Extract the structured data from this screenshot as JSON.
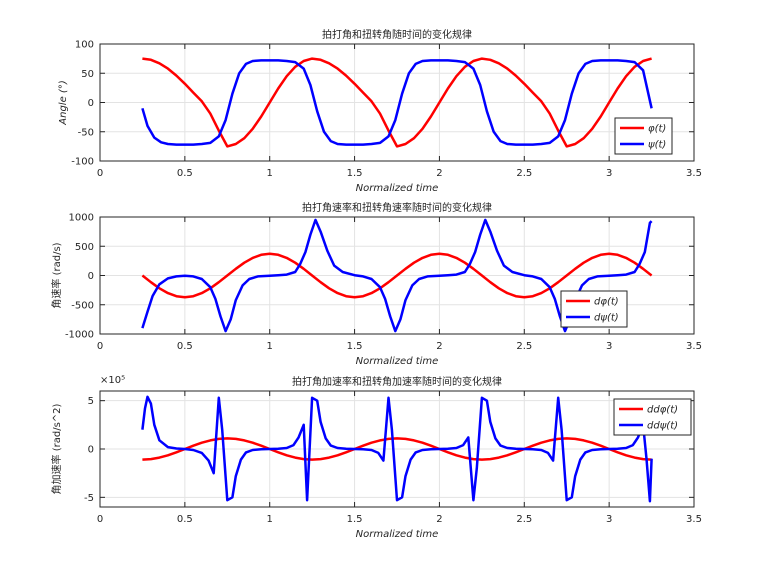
{
  "chart_data": [
    {
      "type": "line",
      "title": "拍打角和扭转角随时间的变化规律",
      "xlabel": "Normalized time",
      "ylabel": "Angle (°)",
      "xlim": [
        0,
        3.5
      ],
      "ylim": [
        -100,
        100
      ],
      "xticks": [
        "0",
        "0.5",
        "1",
        "1.5",
        "2",
        "2.5",
        "3",
        "3.5"
      ],
      "yticks": [
        "-100",
        "-50",
        "0",
        "50",
        "100"
      ],
      "grid": true,
      "legend_position": "lower-right",
      "exponent_label": "",
      "series": [
        {
          "name": "φ(t)",
          "color": "#ff0000",
          "x": [
            0.25,
            0.3,
            0.35,
            0.4,
            0.45,
            0.5,
            0.55,
            0.6,
            0.65,
            0.7,
            0.75,
            0.8,
            0.85,
            0.9,
            0.95,
            1.0,
            1.05,
            1.1,
            1.15,
            1.2,
            1.25,
            1.3,
            1.35,
            1.4,
            1.45,
            1.5,
            1.55,
            1.6,
            1.65,
            1.7,
            1.75,
            1.8,
            1.85,
            1.9,
            1.95,
            2.0,
            2.05,
            2.1,
            2.15,
            2.2,
            2.25,
            2.3,
            2.35,
            2.4,
            2.45,
            2.5,
            2.55,
            2.6,
            2.65,
            2.7,
            2.75,
            2.8,
            2.85,
            2.9,
            2.95,
            3.0,
            3.05,
            3.1,
            3.15,
            3.2,
            3.25
          ],
          "y": [
            75,
            73,
            67,
            58,
            46,
            32,
            17,
            2,
            -19,
            -48,
            -75,
            -71,
            -61,
            -45,
            -24,
            0,
            24,
            45,
            61,
            71,
            75,
            73,
            67,
            58,
            46,
            32,
            17,
            2,
            -19,
            -48,
            -75,
            -71,
            -61,
            -45,
            -24,
            0,
            24,
            45,
            61,
            71,
            75,
            73,
            67,
            58,
            46,
            32,
            17,
            2,
            -19,
            -48,
            -75,
            -71,
            -61,
            -45,
            -24,
            0,
            24,
            45,
            61,
            71,
            75
          ]
        },
        {
          "name": "ψ(t)",
          "color": "#0000ff",
          "x": [
            0.25,
            0.28,
            0.32,
            0.36,
            0.4,
            0.45,
            0.5,
            0.55,
            0.6,
            0.65,
            0.7,
            0.74,
            0.78,
            0.82,
            0.86,
            0.9,
            0.95,
            1.0,
            1.05,
            1.1,
            1.15,
            1.2,
            1.24,
            1.28,
            1.32,
            1.36,
            1.4,
            1.45,
            1.5,
            1.55,
            1.6,
            1.65,
            1.7,
            1.74,
            1.78,
            1.82,
            1.86,
            1.9,
            1.95,
            2.0,
            2.05,
            2.1,
            2.15,
            2.2,
            2.24,
            2.28,
            2.32,
            2.36,
            2.4,
            2.45,
            2.5,
            2.55,
            2.6,
            2.65,
            2.7,
            2.74,
            2.78,
            2.82,
            2.86,
            2.9,
            2.95,
            3.0,
            3.05,
            3.1,
            3.15,
            3.2,
            3.25
          ],
          "y": [
            -10,
            -40,
            -60,
            -68,
            -71,
            -72,
            -72,
            -72,
            -71,
            -69,
            -58,
            -30,
            15,
            50,
            66,
            71,
            72,
            72,
            72,
            71,
            69,
            58,
            30,
            -15,
            -50,
            -66,
            -71,
            -72,
            -72,
            -72,
            -71,
            -69,
            -58,
            -30,
            15,
            50,
            66,
            71,
            72,
            72,
            72,
            71,
            69,
            58,
            30,
            -15,
            -50,
            -66,
            -71,
            -72,
            -72,
            -72,
            -71,
            -69,
            -58,
            -30,
            15,
            50,
            66,
            71,
            72,
            72,
            72,
            71,
            69,
            55,
            -10
          ]
        }
      ]
    },
    {
      "type": "line",
      "title": "拍打角速率和扭转角速率随时间的变化规律",
      "xlabel": "Normalized time",
      "ylabel": "角速率 (rad/s)",
      "xlim": [
        0,
        3.5
      ],
      "ylim": [
        -1000,
        1000
      ],
      "xticks": [
        "0",
        "0.5",
        "1",
        "1.5",
        "2",
        "2.5",
        "3",
        "3.5"
      ],
      "yticks": [
        "-1000",
        "-500",
        "0",
        "500",
        "1000"
      ],
      "grid": true,
      "legend_position": "lower-right",
      "exponent_label": "",
      "series": [
        {
          "name": "dφ(t)",
          "color": "#ff0000",
          "x": [
            0.25,
            0.3,
            0.35,
            0.4,
            0.45,
            0.5,
            0.55,
            0.6,
            0.65,
            0.7,
            0.75,
            0.8,
            0.85,
            0.9,
            0.95,
            1.0,
            1.05,
            1.1,
            1.15,
            1.2,
            1.25,
            1.3,
            1.35,
            1.4,
            1.45,
            1.5,
            1.55,
            1.6,
            1.65,
            1.7,
            1.75,
            1.8,
            1.85,
            1.9,
            1.95,
            2.0,
            2.05,
            2.1,
            2.15,
            2.2,
            2.25,
            2.3,
            2.35,
            2.4,
            2.45,
            2.5,
            2.55,
            2.6,
            2.65,
            2.7,
            2.75,
            2.8,
            2.85,
            2.9,
            2.95,
            3.0,
            3.05,
            3.1,
            3.15,
            3.2,
            3.25
          ],
          "y": [
            0,
            -115,
            -219,
            -301,
            -354,
            -372,
            -354,
            -301,
            -219,
            -115,
            0,
            115,
            219,
            301,
            354,
            372,
            354,
            301,
            219,
            115,
            0,
            -115,
            -219,
            -301,
            -354,
            -372,
            -354,
            -301,
            -219,
            -115,
            0,
            115,
            219,
            301,
            354,
            372,
            354,
            301,
            219,
            115,
            0,
            -115,
            -219,
            -301,
            -354,
            -372,
            -354,
            -301,
            -219,
            -115,
            0,
            115,
            219,
            301,
            354,
            372,
            354,
            301,
            219,
            115,
            0
          ]
        },
        {
          "name": "dψ(t)",
          "color": "#0000ff",
          "x": [
            0.25,
            0.28,
            0.31,
            0.35,
            0.4,
            0.45,
            0.5,
            0.55,
            0.6,
            0.65,
            0.68,
            0.71,
            0.74,
            0.77,
            0.8,
            0.84,
            0.88,
            0.93,
            1.0,
            1.05,
            1.1,
            1.15,
            1.18,
            1.21,
            1.24,
            1.27,
            1.3,
            1.34,
            1.38,
            1.43,
            1.5,
            1.55,
            1.6,
            1.65,
            1.68,
            1.71,
            1.74,
            1.77,
            1.8,
            1.84,
            1.88,
            1.93,
            2.0,
            2.05,
            2.1,
            2.15,
            2.18,
            2.21,
            2.24,
            2.27,
            2.3,
            2.34,
            2.38,
            2.43,
            2.5,
            2.55,
            2.6,
            2.65,
            2.68,
            2.71,
            2.74,
            2.77,
            2.8,
            2.84,
            2.88,
            2.93,
            3.0,
            3.05,
            3.1,
            3.15,
            3.18,
            3.21,
            3.24,
            3.25
          ],
          "y": [
            -900,
            -620,
            -350,
            -150,
            -50,
            -15,
            -5,
            -15,
            -60,
            -200,
            -400,
            -700,
            -950,
            -750,
            -420,
            -170,
            -60,
            -15,
            -5,
            5,
            15,
            60,
            200,
            400,
            700,
            950,
            750,
            420,
            170,
            60,
            5,
            -15,
            -60,
            -200,
            -400,
            -700,
            -950,
            -750,
            -420,
            -170,
            -60,
            -15,
            -5,
            5,
            15,
            60,
            200,
            400,
            700,
            950,
            750,
            420,
            170,
            60,
            5,
            -15,
            -60,
            -200,
            -400,
            -700,
            -950,
            -750,
            -420,
            -170,
            -60,
            -15,
            -5,
            5,
            15,
            60,
            200,
            400,
            900,
            930
          ]
        }
      ]
    },
    {
      "type": "line",
      "title": "拍打角加速率和扭转角加速率随时间的变化规律",
      "xlabel": "Normalized time",
      "ylabel": "角加速率 (rad/s^2)",
      "xlim": [
        0,
        3.5
      ],
      "ylim": [
        -6,
        6
      ],
      "xticks": [
        "0",
        "0.5",
        "1",
        "1.5",
        "2",
        "2.5",
        "3",
        "3.5"
      ],
      "yticks": [
        "-5",
        "0",
        "5"
      ],
      "grid": true,
      "legend_position": "top-right",
      "exponent_label": "×10⁵",
      "series": [
        {
          "name": "ddφ(t)",
          "color": "#ff0000",
          "x": [
            0.25,
            0.3,
            0.35,
            0.4,
            0.45,
            0.5,
            0.55,
            0.6,
            0.65,
            0.7,
            0.75,
            0.8,
            0.85,
            0.9,
            0.95,
            1.0,
            1.05,
            1.1,
            1.15,
            1.2,
            1.25,
            1.3,
            1.35,
            1.4,
            1.45,
            1.5,
            1.55,
            1.6,
            1.65,
            1.7,
            1.75,
            1.8,
            1.85,
            1.9,
            1.95,
            2.0,
            2.05,
            2.1,
            2.15,
            2.2,
            2.25,
            2.3,
            2.35,
            2.4,
            2.45,
            2.5,
            2.55,
            2.6,
            2.65,
            2.7,
            2.75,
            2.8,
            2.85,
            2.9,
            2.95,
            3.0,
            3.05,
            3.1,
            3.15,
            3.2,
            3.25
          ],
          "y": [
            -1.1,
            -1.05,
            -0.89,
            -0.65,
            -0.34,
            0,
            0.34,
            0.65,
            0.89,
            1.05,
            1.1,
            1.05,
            0.89,
            0.65,
            0.34,
            0,
            -0.34,
            -0.65,
            -0.89,
            -1.05,
            -1.1,
            -1.05,
            -0.89,
            -0.65,
            -0.34,
            0,
            0.34,
            0.65,
            0.89,
            1.05,
            1.1,
            1.05,
            0.89,
            0.65,
            0.34,
            0,
            -0.34,
            -0.65,
            -0.89,
            -1.05,
            -1.1,
            -1.05,
            -0.89,
            -0.65,
            -0.34,
            0,
            0.34,
            0.65,
            0.89,
            1.05,
            1.1,
            1.05,
            0.89,
            0.65,
            0.34,
            0,
            -0.34,
            -0.65,
            -0.89,
            -1.05,
            -1.1
          ]
        },
        {
          "name": "ddψ(t)",
          "color": "#0000ff",
          "x": [
            0.25,
            0.265,
            0.28,
            0.3,
            0.32,
            0.35,
            0.4,
            0.45,
            0.5,
            0.55,
            0.6,
            0.64,
            0.67,
            0.7,
            0.72,
            0.75,
            0.78,
            0.8,
            0.83,
            0.86,
            0.9,
            0.95,
            1.0,
            1.05,
            1.1,
            1.14,
            1.17,
            1.2,
            1.22,
            1.25,
            1.28,
            1.3,
            1.33,
            1.36,
            1.4,
            1.45,
            1.5,
            1.55,
            1.6,
            1.64,
            1.67,
            1.7,
            1.72,
            1.75,
            1.78,
            1.8,
            1.83,
            1.86,
            1.9,
            1.95,
            2.0,
            2.05,
            2.1,
            2.14,
            2.17,
            2.2,
            2.22,
            2.25,
            2.28,
            2.3,
            2.33,
            2.36,
            2.4,
            2.45,
            2.5,
            2.55,
            2.6,
            2.64,
            2.67,
            2.7,
            2.72,
            2.75,
            2.78,
            2.8,
            2.83,
            2.86,
            2.9,
            2.95,
            3.0,
            3.05,
            3.1,
            3.14,
            3.17,
            3.2,
            3.22,
            3.24,
            3.25
          ],
          "y": [
            2.0,
            4.2,
            5.4,
            4.7,
            2.5,
            0.9,
            0.2,
            0.05,
            0.0,
            -0.1,
            -0.4,
            -1.2,
            -2.5,
            5.3,
            2.0,
            -5.3,
            -5.0,
            -2.8,
            -1.1,
            -0.35,
            -0.1,
            -0.02,
            0.0,
            0.02,
            0.1,
            0.4,
            1.2,
            2.5,
            -5.3,
            5.3,
            5.0,
            2.8,
            1.1,
            0.35,
            0.1,
            0.02,
            0.0,
            -0.02,
            -0.1,
            -0.4,
            -1.2,
            5.3,
            2.0,
            -5.3,
            -5.0,
            -2.8,
            -1.1,
            -0.35,
            -0.1,
            -0.02,
            0.0,
            0.02,
            0.1,
            0.4,
            1.2,
            -5.3,
            -2.0,
            5.3,
            5.0,
            2.8,
            1.1,
            0.35,
            0.1,
            0.02,
            0.0,
            -0.02,
            -0.1,
            -0.4,
            -1.2,
            5.3,
            2.0,
            -5.3,
            -5.0,
            -2.8,
            -1.1,
            -0.35,
            -0.1,
            -0.02,
            0.0,
            0.02,
            0.1,
            0.4,
            1.2,
            2.5,
            -1.0,
            -5.4,
            -1.0
          ]
        }
      ]
    }
  ]
}
